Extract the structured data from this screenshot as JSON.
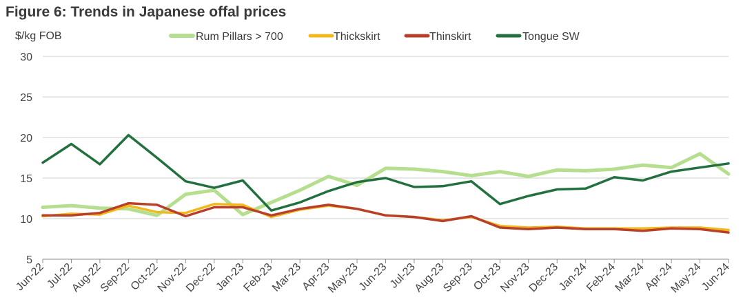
{
  "chart_data": {
    "type": "line",
    "title": "Figure 6: Trends in Japanese offal prices",
    "ylabel": "$/kg FOB",
    "xlabel": "",
    "ylim": [
      5,
      30
    ],
    "yticks": [
      30,
      25,
      20,
      15,
      10,
      5
    ],
    "grid": true,
    "legend_position": "top",
    "categories": [
      "Jun-22",
      "Jul-22",
      "Aug-22",
      "Sep-22",
      "Oct-22",
      "Nov-22",
      "Dec-22",
      "Jan-23",
      "Feb-23",
      "Mar-23",
      "Apr-23",
      "May-23",
      "Jun-23",
      "Jul-23",
      "Aug-23",
      "Sep-23",
      "Oct-23",
      "Nov-23",
      "Dec-23",
      "Jan-24",
      "Feb-24",
      "Mar-24",
      "Apr-24",
      "May-24",
      "Jun-24"
    ],
    "series": [
      {
        "name": "Rum Pillars > 700",
        "color": "#b5de8f",
        "values": [
          11.4,
          11.6,
          11.3,
          11.2,
          10.4,
          13.0,
          13.5,
          10.5,
          12.0,
          13.5,
          15.2,
          14.1,
          16.2,
          16.1,
          15.8,
          15.3,
          15.8,
          15.2,
          16.0,
          15.9,
          16.1,
          16.6,
          16.3,
          18.0,
          15.5
        ]
      },
      {
        "name": "Thickskirt",
        "color": "#f2b81c",
        "values": [
          10.3,
          10.6,
          10.5,
          11.6,
          10.8,
          10.7,
          11.8,
          11.7,
          10.2,
          11.1,
          11.6,
          11.2,
          10.4,
          10.2,
          9.8,
          10.2,
          9.1,
          8.9,
          9.0,
          8.8,
          8.8,
          8.8,
          8.9,
          8.9,
          8.6
        ]
      },
      {
        "name": "Thinskirt",
        "color": "#b8402b",
        "values": [
          10.4,
          10.4,
          10.7,
          11.9,
          11.7,
          10.3,
          11.4,
          11.4,
          10.4,
          11.2,
          11.7,
          11.2,
          10.4,
          10.2,
          9.7,
          10.3,
          8.9,
          8.7,
          8.9,
          8.7,
          8.7,
          8.5,
          8.8,
          8.7,
          8.3
        ]
      },
      {
        "name": "Tongue SW",
        "color": "#23703f",
        "values": [
          16.9,
          19.2,
          16.7,
          20.3,
          17.5,
          14.6,
          13.8,
          14.7,
          11.0,
          12.0,
          13.4,
          14.5,
          15.0,
          13.9,
          14.0,
          14.6,
          11.8,
          12.8,
          13.6,
          13.7,
          15.1,
          14.7,
          15.8,
          16.3,
          16.8
        ]
      }
    ]
  }
}
